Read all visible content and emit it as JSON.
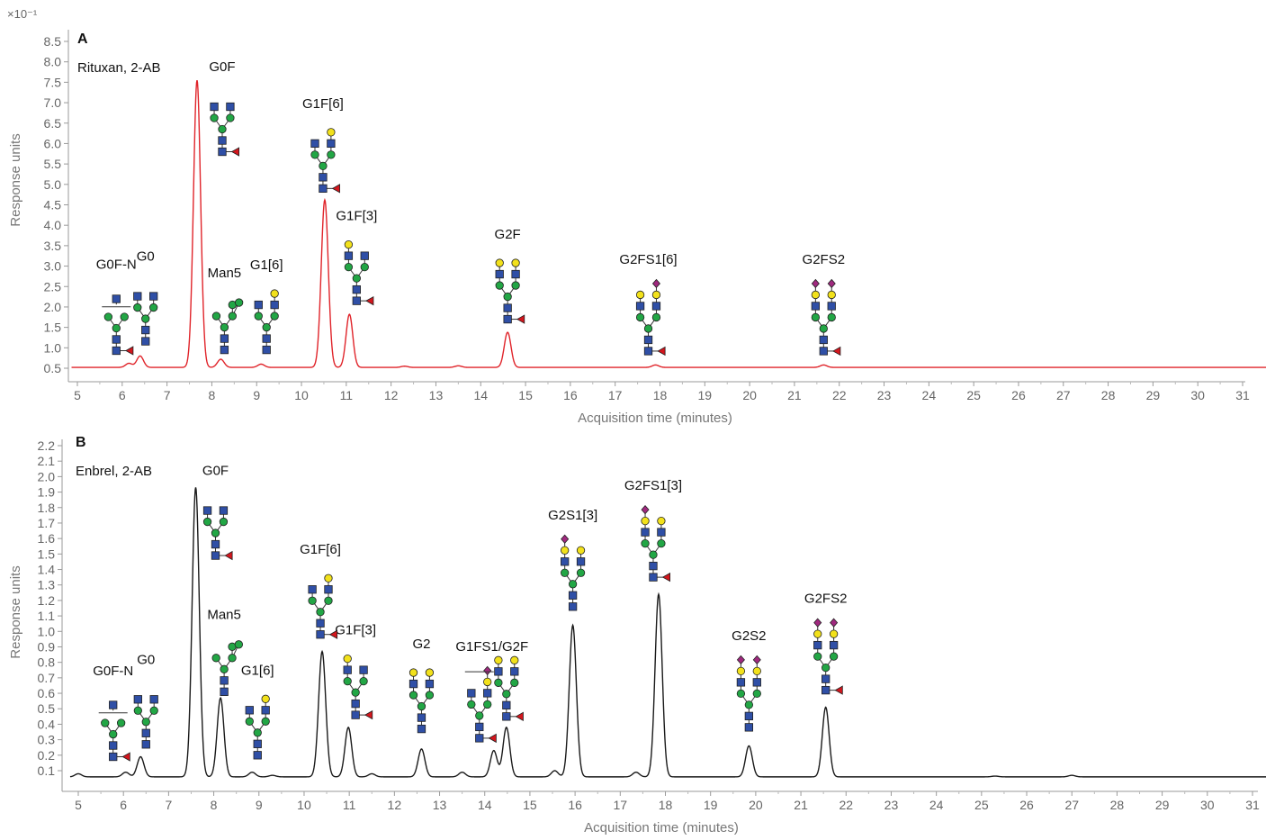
{
  "scale_note": "×10⁻¹",
  "colors": {
    "trace_a": "#e0242a",
    "trace_b": "#1a1a1a",
    "glcnac": "#2f4fa6",
    "mannose": "#22a645",
    "galactose": "#f2e11b",
    "fucose": "#d4161d",
    "sialic": "#a0297f"
  },
  "chart_data": [
    {
      "type": "line",
      "panel": "A",
      "sample": "Rituxan, 2-AB",
      "xlabel": "Acquisition time (minutes)",
      "ylabel": "Response units",
      "xlim": [
        4.85,
        31.9
      ],
      "ylim": [
        0.38,
        8.72
      ],
      "xticks": [
        5,
        6,
        7,
        8,
        9,
        10,
        11,
        12,
        13,
        14,
        15,
        16,
        17,
        18,
        19,
        20,
        21,
        22,
        23,
        24,
        25,
        26,
        27,
        28,
        29,
        30,
        31
      ],
      "yticks": [
        "0.5",
        "1.0",
        "1.5",
        "2.0",
        "2.5",
        "3.0",
        "3.5",
        "4.0",
        "4.5",
        "5.0",
        "5.5",
        "6.0",
        "6.5",
        "7.0",
        "7.5",
        "8.0",
        "8.5"
      ],
      "grid": false,
      "baseline": 0.52,
      "peaks": [
        {
          "name": "G0F-N",
          "rt": 6.15,
          "height": 0.62,
          "glycan": "G0F-N",
          "label": true
        },
        {
          "name": "G0",
          "rt": 6.4,
          "height": 0.8,
          "glycan": "G0",
          "label": true
        },
        {
          "name": "G0F",
          "rt": 7.67,
          "height": 7.55,
          "glycan": "G0F",
          "label": true
        },
        {
          "name": "Man5",
          "rt": 8.2,
          "height": 0.72,
          "glycan": "Man5",
          "label": true
        },
        {
          "name": "G1[6]",
          "rt": 9.1,
          "height": 0.6,
          "glycan": "G1_6",
          "label": true
        },
        {
          "name": "G1F[6]",
          "rt": 10.52,
          "height": 4.62,
          "glycan": "G1F_6",
          "label": true
        },
        {
          "name": "G1F[3]",
          "rt": 11.07,
          "height": 1.82,
          "glycan": "G1F_3",
          "label": true
        },
        {
          "name": "",
          "rt": 12.3,
          "height": 0.55,
          "label": false
        },
        {
          "name": "",
          "rt": 13.5,
          "height": 0.56,
          "label": false
        },
        {
          "name": "G2F",
          "rt": 14.6,
          "height": 1.38,
          "glycan": "G2F",
          "label": true
        },
        {
          "name": "G2FS1[6]",
          "rt": 17.9,
          "height": 0.58,
          "glycan": "G2FS1_6",
          "label": true
        },
        {
          "name": "G2FS2",
          "rt": 21.65,
          "height": 0.58,
          "glycan": "G2FS2",
          "label": true
        }
      ]
    },
    {
      "type": "line",
      "panel": "B",
      "sample": "Enbrel, 2-AB",
      "xlabel": "Acquisition time (minutes)",
      "ylabel": "Response units",
      "xlim": [
        4.8,
        32.0
      ],
      "ylim": [
        0.0,
        2.26
      ],
      "xticks": [
        5,
        6,
        7,
        8,
        9,
        10,
        11,
        12,
        13,
        14,
        15,
        16,
        17,
        18,
        19,
        20,
        21,
        22,
        23,
        24,
        25,
        26,
        27,
        28,
        29,
        30,
        31
      ],
      "yticks": [
        "0.1",
        "0.2",
        "0.3",
        "0.4",
        "0.5",
        "0.6",
        "0.7",
        "0.8",
        "0.9",
        "1.0",
        "1.1",
        "1.2",
        "1.3",
        "1.4",
        "1.5",
        "1.6",
        "1.7",
        "1.8",
        "1.9",
        "2.0",
        "2.1",
        "2.2"
      ],
      "grid": false,
      "baseline": 0.06,
      "peaks": [
        {
          "name": "",
          "rt": 5.0,
          "height": 0.08,
          "label": false
        },
        {
          "name": "G0F-N",
          "rt": 6.05,
          "height": 0.09,
          "glycan": "G0F-N",
          "label": true
        },
        {
          "name": "G0",
          "rt": 6.38,
          "height": 0.19,
          "glycan": "G0",
          "label": true
        },
        {
          "name": "G0F",
          "rt": 7.6,
          "height": 1.93,
          "glycan": "G0F",
          "label": true
        },
        {
          "name": "Man5",
          "rt": 8.15,
          "height": 0.57,
          "glycan": "Man5",
          "label": true
        },
        {
          "name": "G1[6]",
          "rt": 8.85,
          "height": 0.09,
          "glycan": "G1_6",
          "label": true
        },
        {
          "name": "",
          "rt": 9.3,
          "height": 0.07,
          "label": false
        },
        {
          "name": "G1F[6]",
          "rt": 10.4,
          "height": 0.87,
          "glycan": "G1F_6",
          "label": true
        },
        {
          "name": "G1F[3]",
          "rt": 10.98,
          "height": 0.38,
          "glycan": "G1F_3",
          "label": true
        },
        {
          "name": "",
          "rt": 11.5,
          "height": 0.08,
          "label": false
        },
        {
          "name": "G2",
          "rt": 12.6,
          "height": 0.24,
          "glycan": "G2",
          "label": true
        },
        {
          "name": "",
          "rt": 13.5,
          "height": 0.09,
          "label": false
        },
        {
          "name": "G1FS1/G2F",
          "rt": 14.2,
          "height": 0.23,
          "glycan": "G1FS1",
          "label": true
        },
        {
          "name": "",
          "rt": 14.48,
          "height": 0.38,
          "glycan": "G2F",
          "label": false
        },
        {
          "name": "",
          "rt": 15.55,
          "height": 0.1,
          "label": false
        },
        {
          "name": "G2S1[3]",
          "rt": 15.95,
          "height": 1.04,
          "glycan": "G2S1_3",
          "label": true
        },
        {
          "name": "",
          "rt": 17.35,
          "height": 0.09,
          "label": false
        },
        {
          "name": "G2FS1[3]",
          "rt": 17.85,
          "height": 1.24,
          "glycan": "G2FS1_3",
          "label": true
        },
        {
          "name": "G2S2",
          "rt": 19.85,
          "height": 0.26,
          "glycan": "G2S2",
          "label": true
        },
        {
          "name": "G2FS2",
          "rt": 21.55,
          "height": 0.51,
          "glycan": "G2FS2",
          "label": true
        },
        {
          "name": "",
          "rt": 25.3,
          "height": 0.065,
          "label": false
        },
        {
          "name": "",
          "rt": 27.0,
          "height": 0.07,
          "label": false
        }
      ]
    }
  ]
}
